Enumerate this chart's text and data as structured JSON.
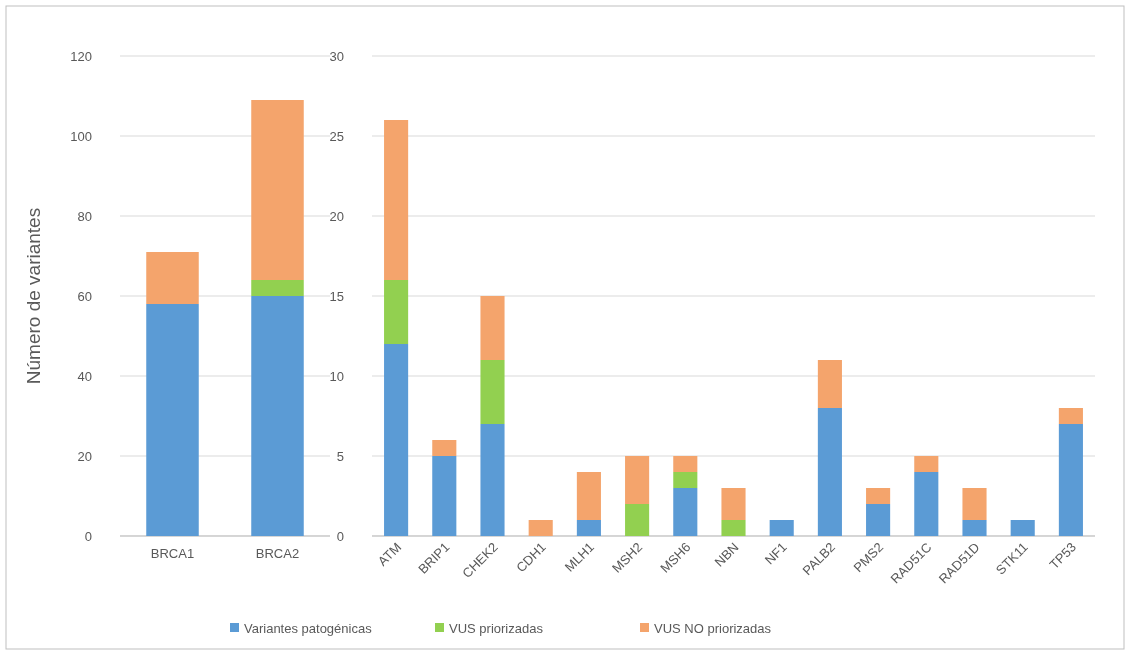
{
  "chart_data": [
    {
      "type": "bar",
      "stacked": true,
      "ylabel": "Número de variantes",
      "categories": [
        "BRCA1",
        "BRCA2"
      ],
      "ylim": [
        0,
        120
      ],
      "yticks": [
        0,
        20,
        40,
        60,
        80,
        100,
        120
      ],
      "grid": "y",
      "legend": false,
      "series": [
        {
          "color": "#5b9bd5",
          "values": [
            58,
            60
          ]
        },
        {
          "color": "#92d050",
          "values": [
            0,
            4
          ]
        },
        {
          "color": "#f4a46c",
          "values": [
            13,
            45
          ]
        }
      ]
    },
    {
      "type": "bar",
      "stacked": true,
      "categories": [
        "ATM",
        "BRIP1",
        "CHEK2",
        "CDH1",
        "MLH1",
        "MSH2",
        "MSH6",
        "NBN",
        "NF1",
        "PALB2",
        "PMS2",
        "RAD51C",
        "RAD51D",
        "STK11",
        "TP53"
      ],
      "ylim": [
        0,
        30
      ],
      "yticks": [
        0,
        5,
        10,
        15,
        20,
        25,
        30
      ],
      "grid": "y",
      "legend": "bottom",
      "series": [
        {
          "name": "Variantes patogénicas",
          "color": "#5b9bd5",
          "values": [
            12,
            5,
            7,
            0,
            1,
            0,
            3,
            0,
            1,
            8,
            2,
            4,
            1,
            1,
            7
          ]
        },
        {
          "name": "VUS priorizadas",
          "color": "#92d050",
          "values": [
            4,
            0,
            4,
            0,
            0,
            2,
            1,
            1,
            0,
            0,
            0,
            0,
            0,
            0,
            0
          ]
        },
        {
          "name": "VUS NO priorizadas",
          "color": "#f4a46c",
          "values": [
            10,
            1,
            4,
            1,
            3,
            3,
            1,
            2,
            0,
            3,
            1,
            1,
            2,
            0,
            1
          ]
        }
      ]
    }
  ]
}
